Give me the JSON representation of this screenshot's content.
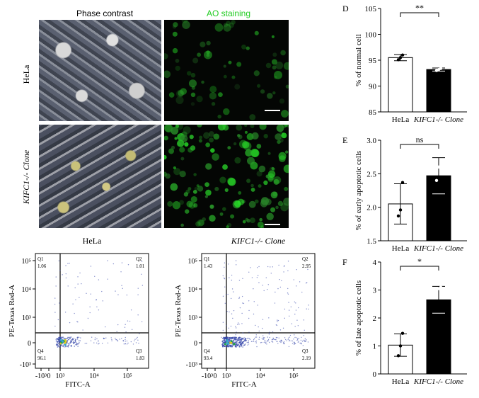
{
  "micrographs": {
    "col_left": "Phase contrast",
    "col_right": "AO staining",
    "col_right_color": "#22cc22",
    "row_top": "HeLa",
    "row_bottom": "KIFC1-/- Clone"
  },
  "flow": [
    {
      "title": "HeLa",
      "xlabel": "FITC-A",
      "ylabel": "PE-Texas Red-A",
      "quadrants": {
        "Q1": "1.06",
        "Q2": "1.01",
        "Q3": "1.83",
        "Q4": "96.1"
      }
    },
    {
      "title": "KIFC1-/- Clone",
      "xlabel": "FITC-A",
      "ylabel": "PE-Texas Red-A",
      "quadrants": {
        "Q1": "1.43",
        "Q2": "2.95",
        "Q3": "2.19",
        "Q4": "93.4"
      }
    }
  ],
  "flow_ticks_x": [
    "-10³",
    "0",
    "10³",
    "10⁴",
    "10⁵"
  ],
  "flow_ticks_y": [
    "10⁵",
    "10⁴",
    "10³",
    "0",
    "-10³"
  ],
  "chart_data": [
    {
      "panel": "D",
      "type": "bar",
      "categories": [
        "HeLa",
        "KIFC1-/- Clone"
      ],
      "values": [
        95.5,
        93.2
      ],
      "errors": [
        0.6,
        0.3
      ],
      "points": [
        [
          95.1,
          95.5,
          96.0
        ],
        [
          93.0,
          93.2,
          93.4
        ]
      ],
      "ylabel": "% of normal cell",
      "ylim": [
        85,
        105
      ],
      "yticks": [
        85,
        90,
        95,
        100,
        105
      ],
      "significance": "**"
    },
    {
      "panel": "E",
      "type": "bar",
      "categories": [
        "HeLa",
        "KIFC1-/- Clone"
      ],
      "values": [
        2.05,
        2.47
      ],
      "errors": [
        0.3,
        0.27
      ],
      "points": [
        [
          1.87,
          1.96,
          2.37
        ],
        [
          2.4,
          2.6,
          2.65
        ]
      ],
      "ylabel": "% of early apoptotic cells",
      "ylim": [
        1.5,
        3.0
      ],
      "yticks": [
        1.5,
        2.0,
        2.5,
        3.0
      ],
      "significance": "ns"
    },
    {
      "panel": "F",
      "type": "bar",
      "categories": [
        "HeLa",
        "KIFC1-/- Clone"
      ],
      "values": [
        1.03,
        2.65
      ],
      "errors": [
        0.4,
        0.48
      ],
      "points": [
        [
          0.65,
          1.0,
          1.45
        ],
        [
          2.95,
          3.05,
          3.1
        ]
      ],
      "ylabel": "% of late apoptotic cells",
      "ylim": [
        0,
        4
      ],
      "yticks": [
        0,
        1,
        2,
        3,
        4
      ],
      "significance": "*"
    }
  ]
}
